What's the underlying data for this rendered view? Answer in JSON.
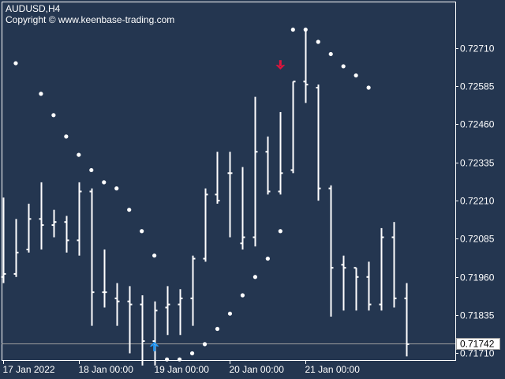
{
  "header": {
    "symbol": "AUDUSD,H4",
    "copyright": "Copyright © www.keenbase-trading.com"
  },
  "colors": {
    "background": "#243650",
    "bars": "#ffffff",
    "dots": "#ffffff",
    "axis": "#ffffff",
    "price_line": "#a0a0a0",
    "buy_arrow": "#2196f3",
    "sell_arrow": "#e0143c"
  },
  "chart_data": {
    "type": "ohlc",
    "title": "AUDUSD,H4",
    "y_axis_side": "right",
    "ylim": [
      0.71675,
      0.72805
    ],
    "y_ticks": [
      "0.72710",
      "0.72585",
      "0.72460",
      "0.72335",
      "0.72210",
      "0.72085",
      "0.71960",
      "0.71835",
      "0.71710"
    ],
    "x_tick_labels": [
      {
        "bar": 0,
        "label": "17 Jan 2022"
      },
      {
        "bar": 6,
        "label": "18 Jan 00:00"
      },
      {
        "bar": 12,
        "label": "19 Jan 00:00"
      },
      {
        "bar": 18,
        "label": "20 Jan 00:00"
      },
      {
        "bar": 24,
        "label": "21 Jan 00:00"
      }
    ],
    "current_price": "0.71742",
    "bars": [
      {
        "o": 0.7196,
        "h": 0.7222,
        "l": 0.7194,
        "c": 0.7197
      },
      {
        "o": 0.7197,
        "h": 0.7215,
        "l": 0.7196,
        "c": 0.7204
      },
      {
        "o": 0.7205,
        "h": 0.722,
        "l": 0.7204,
        "c": 0.7215
      },
      {
        "o": 0.7215,
        "h": 0.7227,
        "l": 0.7205,
        "c": 0.7213
      },
      {
        "o": 0.7213,
        "h": 0.7218,
        "l": 0.7209,
        "c": 0.7214
      },
      {
        "o": 0.7214,
        "h": 0.7216,
        "l": 0.7204,
        "c": 0.7208
      },
      {
        "o": 0.7208,
        "h": 0.7227,
        "l": 0.7203,
        "c": 0.7224
      },
      {
        "o": 0.7224,
        "h": 0.7225,
        "l": 0.718,
        "c": 0.7191
      },
      {
        "o": 0.7191,
        "h": 0.7205,
        "l": 0.7186,
        "c": 0.7191
      },
      {
        "o": 0.7189,
        "h": 0.7194,
        "l": 0.718,
        "c": 0.7188
      },
      {
        "o": 0.7188,
        "h": 0.7193,
        "l": 0.7171,
        "c": 0.7187
      },
      {
        "o": 0.7187,
        "h": 0.719,
        "l": 0.7167,
        "c": 0.7175
      },
      {
        "o": 0.7175,
        "h": 0.7188,
        "l": 0.7167,
        "c": 0.7185
      },
      {
        "o": 0.7186,
        "h": 0.7193,
        "l": 0.7177,
        "c": 0.7187
      },
      {
        "o": 0.7187,
        "h": 0.7192,
        "l": 0.7177,
        "c": 0.7189
      },
      {
        "o": 0.7189,
        "h": 0.7203,
        "l": 0.718,
        "c": 0.7202
      },
      {
        "o": 0.7202,
        "h": 0.7225,
        "l": 0.7201,
        "c": 0.7223
      },
      {
        "o": 0.7223,
        "h": 0.7237,
        "l": 0.722,
        "c": 0.7221
      },
      {
        "o": 0.723,
        "h": 0.7237,
        "l": 0.7209,
        "c": 0.723
      },
      {
        "o": 0.7207,
        "h": 0.7232,
        "l": 0.7205,
        "c": 0.7209
      },
      {
        "o": 0.7209,
        "h": 0.7255,
        "l": 0.7206,
        "c": 0.7237
      },
      {
        "o": 0.7237,
        "h": 0.7242,
        "l": 0.7223,
        "c": 0.7224
      },
      {
        "o": 0.7224,
        "h": 0.725,
        "l": 0.7223,
        "c": 0.723
      },
      {
        "o": 0.7231,
        "h": 0.726,
        "l": 0.723,
        "c": 0.726
      },
      {
        "o": 0.726,
        "h": 0.7277,
        "l": 0.7253,
        "c": 0.7259
      },
      {
        "o": 0.7258,
        "h": 0.7259,
        "l": 0.7221,
        "c": 0.7225
      },
      {
        "o": 0.7225,
        "h": 0.7226,
        "l": 0.7183,
        "c": 0.7199
      },
      {
        "o": 0.72,
        "h": 0.7203,
        "l": 0.7185,
        "c": 0.7199
      },
      {
        "o": 0.7199,
        "h": 0.7199,
        "l": 0.7185,
        "c": 0.7196
      },
      {
        "o": 0.7196,
        "h": 0.7201,
        "l": 0.7185,
        "c": 0.7187
      },
      {
        "o": 0.7187,
        "h": 0.7212,
        "l": 0.7185,
        "c": 0.7209
      },
      {
        "o": 0.7209,
        "h": 0.7214,
        "l": 0.7186,
        "c": 0.7189
      },
      {
        "o": 0.7189,
        "h": 0.7194,
        "l": 0.717,
        "c": 0.7174
      }
    ],
    "sar": [
      {
        "bar": 1,
        "v": 0.7266
      },
      {
        "bar": 3,
        "v": 0.7256
      },
      {
        "bar": 4,
        "v": 0.7249
      },
      {
        "bar": 5,
        "v": 0.7242
      },
      {
        "bar": 6,
        "v": 0.7236
      },
      {
        "bar": 7,
        "v": 0.7231
      },
      {
        "bar": 8,
        "v": 0.7227
      },
      {
        "bar": 9,
        "v": 0.7225
      },
      {
        "bar": 10,
        "v": 0.7218
      },
      {
        "bar": 11,
        "v": 0.7211
      },
      {
        "bar": 12,
        "v": 0.7203
      },
      {
        "bar": 13,
        "v": 0.7169
      },
      {
        "bar": 14,
        "v": 0.7169
      },
      {
        "bar": 15,
        "v": 0.7171
      },
      {
        "bar": 16,
        "v": 0.7174
      },
      {
        "bar": 17,
        "v": 0.7179
      },
      {
        "bar": 18,
        "v": 0.7184
      },
      {
        "bar": 19,
        "v": 0.719
      },
      {
        "bar": 20,
        "v": 0.7196
      },
      {
        "bar": 21,
        "v": 0.7202
      },
      {
        "bar": 22,
        "v": 0.7211
      },
      {
        "bar": 23,
        "v": 0.7277
      },
      {
        "bar": 24,
        "v": 0.7277
      },
      {
        "bar": 25,
        "v": 0.7273
      },
      {
        "bar": 26,
        "v": 0.7269
      },
      {
        "bar": 27,
        "v": 0.7265
      },
      {
        "bar": 28,
        "v": 0.7262
      },
      {
        "bar": 29,
        "v": 0.7258
      }
    ],
    "signals": [
      {
        "bar": 12,
        "type": "buy",
        "price": 0.71735
      },
      {
        "bar": 22,
        "type": "sell",
        "price": 0.72652
      }
    ]
  }
}
